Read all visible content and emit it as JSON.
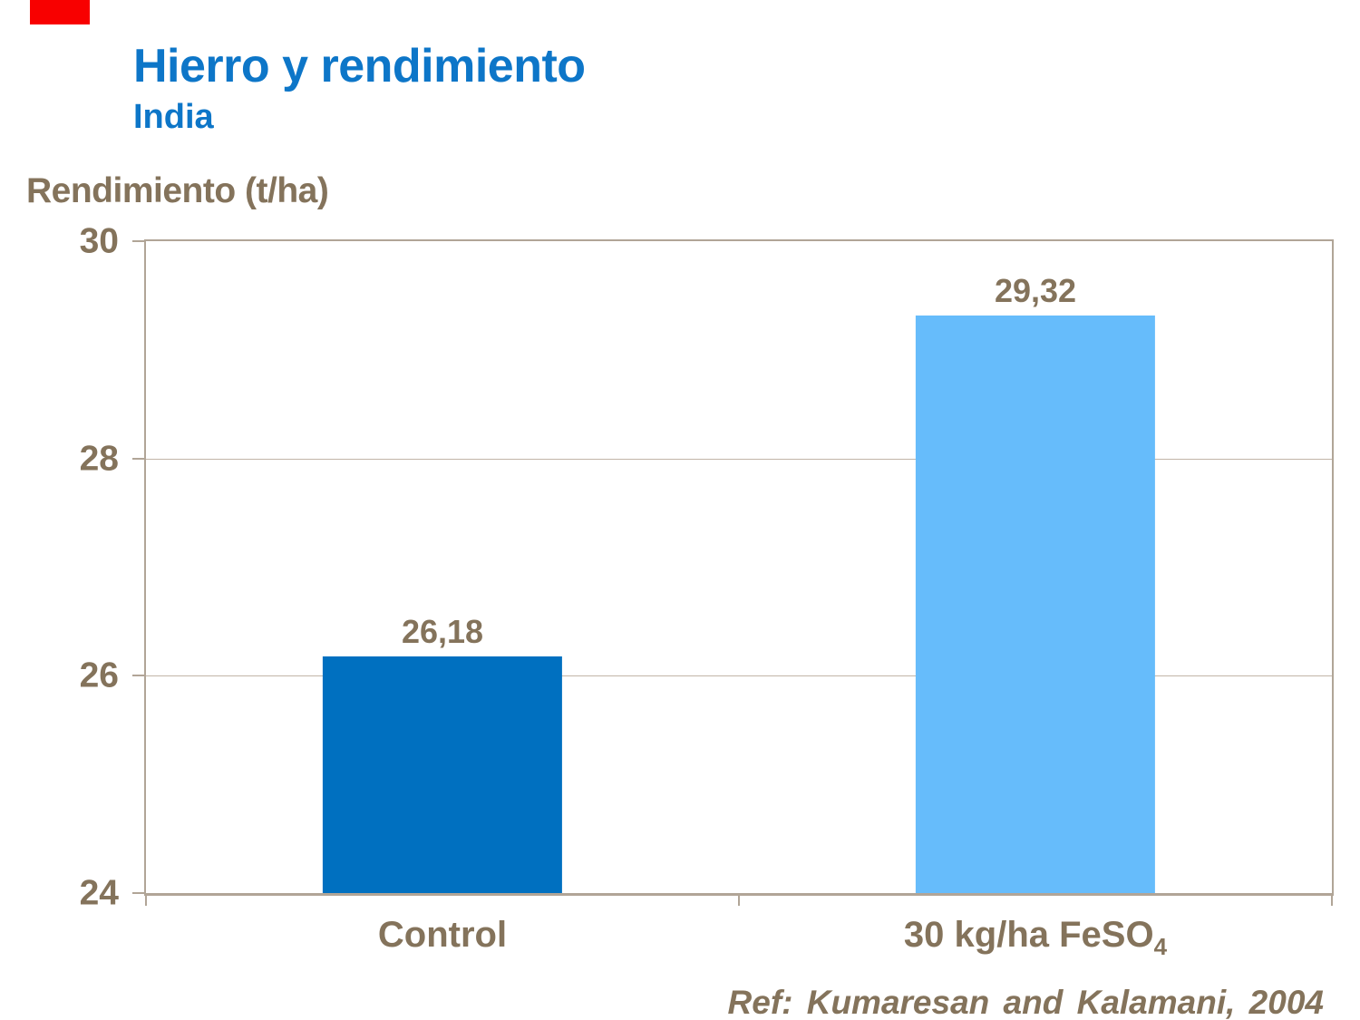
{
  "slide": {
    "title": "Hierro y rendimiento",
    "subtitle": "India",
    "y_axis_title": "Rendimiento (t/ha)",
    "reference": "Ref: Kumaresan and Kalamani, 2004"
  },
  "colors": {
    "title_blue": "#0D76C8",
    "label_taupe": "#84735B",
    "axis_line": "#B1A597",
    "gridline": "#C2B5A7",
    "red_mark": "#F80000",
    "background": "#FFFFFF"
  },
  "chart_data": {
    "type": "bar",
    "title": "Hierro y rendimiento",
    "subtitle": "India",
    "ylabel": "Rendimiento (t/ha)",
    "xlabel": "",
    "categories": [
      {
        "main": "Control",
        "sub": ""
      },
      {
        "main": "30 kg/ha FeSO",
        "sub": "4"
      }
    ],
    "values": [
      26.18,
      29.32
    ],
    "value_labels": [
      "26,18",
      "29,32"
    ],
    "bar_colors": [
      "#0070C0",
      "#66BCFB"
    ],
    "ylim": [
      24,
      30
    ],
    "yticks": [
      30,
      28,
      26,
      24
    ],
    "grid": "horizontal",
    "legend": "none",
    "annotation": "Ref: Kumaresan and Kalamani, 2004"
  }
}
